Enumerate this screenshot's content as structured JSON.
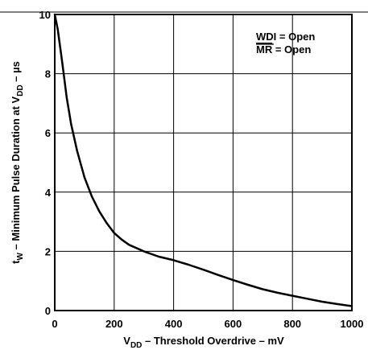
{
  "chart_data": {
    "type": "line",
    "title": "",
    "xlabel": {
      "prefix": "V",
      "subscript": "DD",
      "rest": " – Threshold Overdrive – mV"
    },
    "ylabel": {
      "prefix": "t",
      "subscript": "W",
      "middle": " – Minimum Pulse Duration at V",
      "subscript2": "DD",
      "rest": " – µs"
    },
    "xlim": [
      0,
      1000
    ],
    "ylim": [
      0,
      10
    ],
    "x_ticks": [
      0,
      200,
      400,
      600,
      800,
      1000
    ],
    "y_ticks": [
      0,
      2,
      4,
      6,
      8,
      10
    ],
    "x_tick_labels": [
      "0",
      "200",
      "400",
      "600",
      "800",
      "1000"
    ],
    "y_tick_labels": [
      "0",
      "2",
      "4",
      "6",
      "8",
      "10"
    ],
    "grid": true,
    "annotations": {
      "wdi": "WDI = Open",
      "mr_overline": "MR",
      "mr_rest": " = Open"
    },
    "series": [
      {
        "color": "#000000",
        "x": [
          0,
          10,
          25,
          40,
          55,
          75,
          100,
          125,
          150,
          175,
          200,
          225,
          250,
          300,
          350,
          400,
          450,
          500,
          550,
          600,
          650,
          700,
          750,
          800,
          850,
          900,
          950,
          1000
        ],
        "y": [
          10,
          9.5,
          8.4,
          7.2,
          6.3,
          5.4,
          4.5,
          3.85,
          3.35,
          2.95,
          2.62,
          2.4,
          2.22,
          2.0,
          1.82,
          1.7,
          1.55,
          1.38,
          1.2,
          1.03,
          0.87,
          0.72,
          0.6,
          0.5,
          0.4,
          0.3,
          0.22,
          0.15
        ]
      }
    ]
  }
}
